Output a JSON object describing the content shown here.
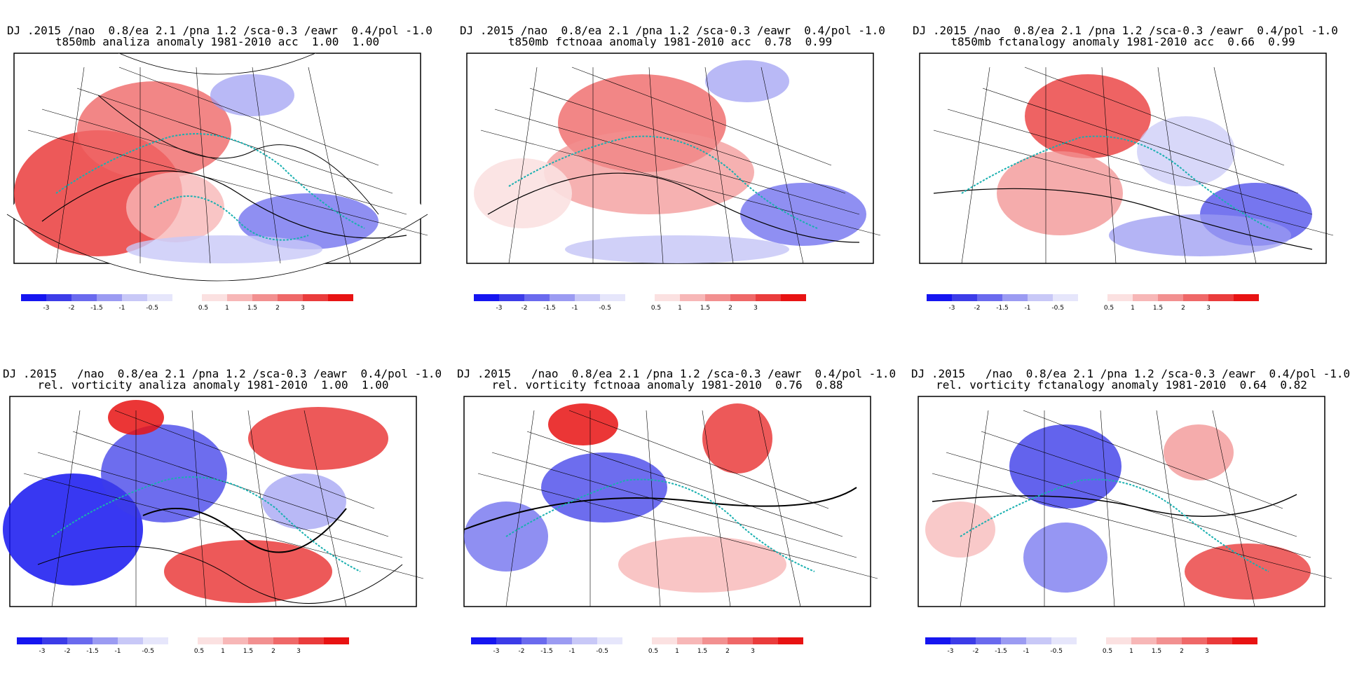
{
  "colorbar": {
    "neg_colors": [
      "#1515f0",
      "#3c3ce8",
      "#6a6aee",
      "#9b9bf2",
      "#c8c8f7",
      "#e6e6fb"
    ],
    "pos_colors": [
      "#fbe1e1",
      "#f7b7b7",
      "#f29090",
      "#ef6868",
      "#ea3c3c",
      "#e81313"
    ],
    "neg_labels": [
      "-3",
      "-2",
      "-1.5",
      "-1",
      "-0.5"
    ],
    "pos_labels": [
      "0.5",
      "1",
      "1.5",
      "2",
      "3"
    ]
  },
  "panels": [
    {
      "title1": "DJ .2015 /nao  0.8/ea 2.1 /pna 1.2 /sca-0.3 /eawr  0.4/pol -1.0",
      "title2": "t850mb analiza anomaly 1981-2010 acc  1.00  1.00"
    },
    {
      "title1": "DJ .2015 /nao  0.8/ea 2.1 /pna 1.2 /sca-0.3 /eawr  0.4/pol -1.0",
      "title2": "t850mb fctnoaa anomaly 1981-2010 acc  0.78  0.99"
    },
    {
      "title1": "DJ .2015 /nao  0.8/ea 2.1 /pna 1.2 /sca-0.3 /eawr  0.4/pol -1.0",
      "title2": "t850mb fctanalogy anomaly 1981-2010 acc  0.66  0.99"
    },
    {
      "title1": "DJ .2015   /nao  0.8/ea 2.1 /pna 1.2 /sca-0.3 /eawr  0.4/pol -1.0",
      "title2": "rel. vorticity analiza anomaly 1981-2010  1.00  1.00"
    },
    {
      "title1": "DJ .2015   /nao  0.8/ea 2.1 /pna 1.2 /sca-0.3 /eawr  0.4/pol -1.0",
      "title2": "rel. vorticity fctnoaa anomaly 1981-2010  0.76  0.88"
    },
    {
      "title1": "DJ .2015   /nao  0.8/ea 2.1 /pna 1.2 /sca-0.3 /eawr  0.4/pol -1.0",
      "title2": "rel. vorticity fctanalogy anomaly 1981-2010  0.64  0.82"
    }
  ]
}
